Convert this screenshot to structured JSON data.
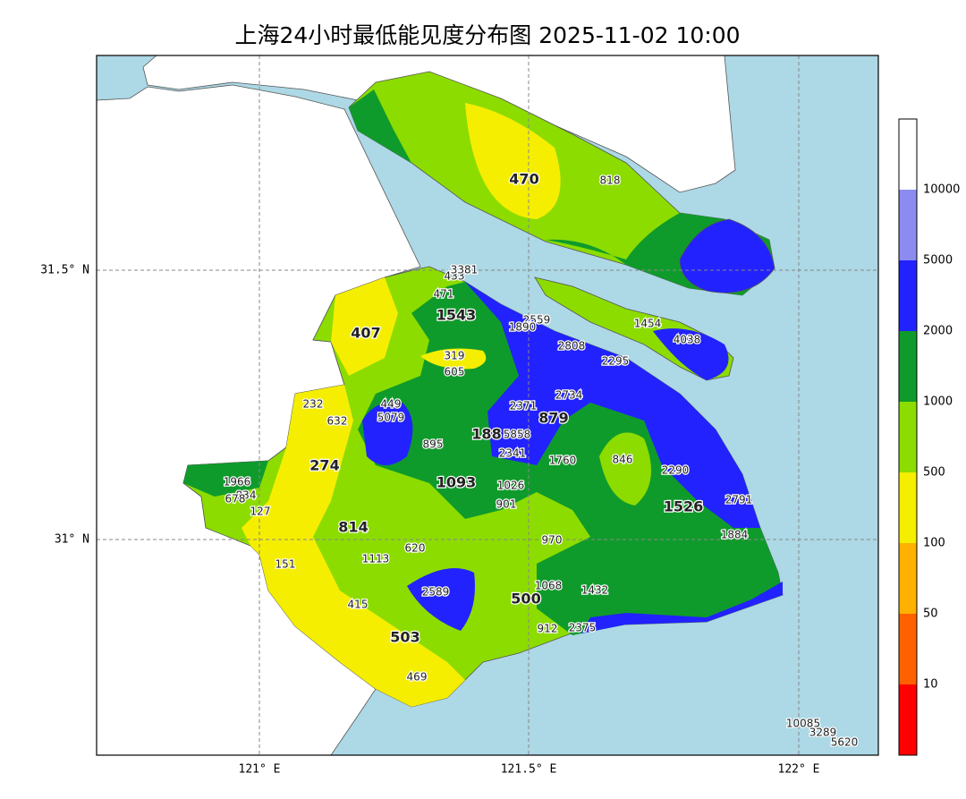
{
  "header": {
    "title": "上海24小时最低能见度分布图 2025-11-02 10:00"
  },
  "axes": {
    "lat_labels": [
      "31.5° N",
      "31° N"
    ],
    "lon_labels": [
      "121° E",
      "121.5° E",
      "122° E"
    ]
  },
  "colorbar": {
    "labels": [
      "10000",
      "5000",
      "2000",
      "1000",
      "500",
      "100",
      "50",
      "10"
    ],
    "colors": [
      "#ffffff",
      "#8c8cf0",
      "#2222ff",
      "#0f9b2b",
      "#8cdc00",
      "#f5ee00",
      "#ffb000",
      "#ff6000",
      "#ff0000"
    ]
  },
  "stations": [
    470,
    818,
    433,
    3381,
    471,
    1543,
    2559,
    1890,
    407,
    1454,
    4038,
    2808,
    319,
    2295,
    605,
    2734,
    449,
    232,
    2371,
    5079,
    879,
    632,
    188,
    5858,
    895,
    2341,
    1760,
    846,
    274,
    2290,
    1966,
    1093,
    1026,
    834,
    678,
    2791,
    901,
    1526,
    127,
    814,
    1884,
    970,
    620,
    1113,
    151,
    1068,
    1432,
    2589,
    500,
    415,
    503,
    912,
    2375,
    469,
    10085,
    3289,
    5620
  ]
}
